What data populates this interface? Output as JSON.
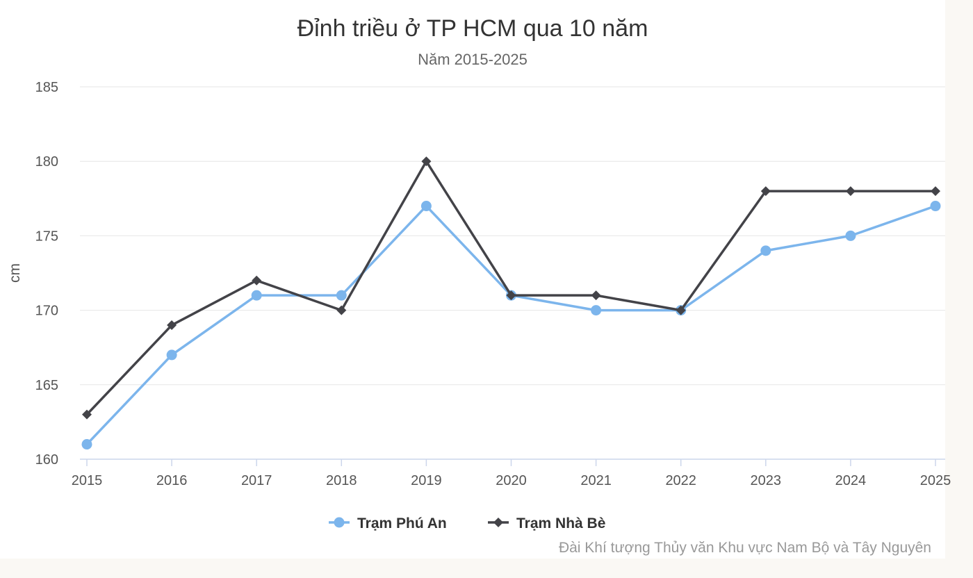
{
  "chart_data": {
    "type": "line",
    "title": "Đỉnh triều ở TP HCM qua 10 năm",
    "subtitle": "Năm 2015-2025",
    "ylabel": "cm",
    "xlabel": "",
    "x": [
      "2015",
      "2016",
      "2017",
      "2018",
      "2019",
      "2020",
      "2021",
      "2022",
      "2023",
      "2024",
      "2025"
    ],
    "ylim": [
      160,
      185
    ],
    "yticks": [
      "160",
      "165",
      "170",
      "175",
      "180",
      "185"
    ],
    "grid": true,
    "legend_position": "bottom-center",
    "series": [
      {
        "name": "Trạm Phú An",
        "color": "#7cb5ec",
        "marker": "circle",
        "values": [
          161,
          167,
          171,
          171,
          177,
          171,
          170,
          170,
          174,
          175,
          177
        ]
      },
      {
        "name": "Trạm Nhà Bè",
        "color": "#434348",
        "marker": "diamond",
        "values": [
          163,
          169,
          172,
          170,
          180,
          171,
          171,
          170,
          178,
          178,
          178
        ]
      }
    ],
    "credits": "Đài Khí tượng Thủy văn Khu vực Nam Bộ và Tây Nguyên"
  }
}
